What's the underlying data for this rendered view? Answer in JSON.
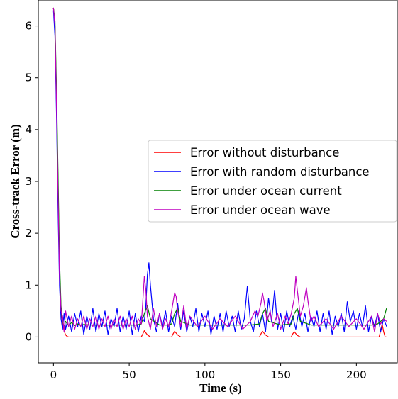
{
  "chart_data": {
    "type": "line",
    "title": "",
    "xlabel": "Time (s)",
    "ylabel": "Cross-track Error (m)",
    "xlim": [
      -10,
      227
    ],
    "ylim": [
      -0.5,
      6.5
    ],
    "xticks": [
      0,
      50,
      100,
      150,
      200
    ],
    "yticks": [
      0,
      1,
      2,
      3,
      4,
      5,
      6
    ],
    "xtick_labels": [
      "0",
      "50",
      "100",
      "150",
      "200"
    ],
    "ytick_labels": [
      "0",
      "1",
      "2",
      "3",
      "4",
      "5",
      "6"
    ],
    "grid": false,
    "legend_position": "center-right",
    "series": [
      {
        "name": "Error without disturbance",
        "color": "#ff0000",
        "x": [
          0,
          1,
          2,
          3,
          4,
          5,
          6,
          7,
          8,
          9,
          10,
          15,
          20,
          25,
          30,
          35,
          40,
          45,
          50,
          55,
          58,
          59,
          60,
          62,
          64,
          70,
          78,
          79,
          80,
          82,
          84,
          90,
          100,
          110,
          120,
          130,
          136,
          137,
          138,
          140,
          142,
          150,
          157,
          158,
          159,
          161,
          163,
          170,
          180,
          190,
          200,
          210,
          215,
          216,
          217,
          218,
          219,
          220
        ],
        "y": [
          6.35,
          6.0,
          4.6,
          3.0,
          1.3,
          0.5,
          0.25,
          0.12,
          0.04,
          0.01,
          0.0,
          0.0,
          0.0,
          0.0,
          0.0,
          0.0,
          0.0,
          0.0,
          0.0,
          0.0,
          0.0,
          0.06,
          0.12,
          0.04,
          0.0,
          0.0,
          0.0,
          0.06,
          0.11,
          0.04,
          0.0,
          0.0,
          0.0,
          0.0,
          0.0,
          0.0,
          0.0,
          0.06,
          0.11,
          0.04,
          0.0,
          0.0,
          0.0,
          0.06,
          0.1,
          0.03,
          0.0,
          0.0,
          0.0,
          0.0,
          0.0,
          0.0,
          0.0,
          0.12,
          0.25,
          0.1,
          0.0,
          0.0
        ]
      },
      {
        "name": "Error with random disturbance",
        "color": "#0000ff",
        "x": [
          0,
          1,
          2,
          3,
          4,
          5,
          6,
          7,
          8,
          10,
          12,
          14,
          16,
          18,
          20,
          22,
          24,
          26,
          28,
          30,
          32,
          34,
          36,
          38,
          40,
          42,
          44,
          46,
          48,
          50,
          52,
          54,
          56,
          58,
          60,
          61,
          62,
          63,
          64,
          66,
          68,
          70,
          72,
          74,
          76,
          78,
          80,
          82,
          84,
          86,
          88,
          90,
          92,
          94,
          96,
          98,
          100,
          102,
          104,
          106,
          108,
          110,
          112,
          114,
          116,
          118,
          120,
          122,
          124,
          126,
          128,
          130,
          132,
          134,
          136,
          138,
          140,
          142,
          144,
          146,
          148,
          150,
          152,
          154,
          156,
          158,
          160,
          162,
          164,
          166,
          168,
          170,
          172,
          174,
          176,
          178,
          180,
          182,
          184,
          186,
          188,
          190,
          192,
          194,
          196,
          198,
          200,
          202,
          204,
          206,
          208,
          210,
          212,
          214,
          216,
          218,
          220
        ],
        "y": [
          6.3,
          5.8,
          4.3,
          2.5,
          1.0,
          0.35,
          0.15,
          0.45,
          0.15,
          0.4,
          0.1,
          0.45,
          0.2,
          0.5,
          0.05,
          0.4,
          0.15,
          0.55,
          0.1,
          0.45,
          0.2,
          0.5,
          0.05,
          0.35,
          0.2,
          0.55,
          0.1,
          0.4,
          0.15,
          0.5,
          0.05,
          0.45,
          0.1,
          0.4,
          0.3,
          0.6,
          1.2,
          1.43,
          1.0,
          0.35,
          0.1,
          0.45,
          0.2,
          0.5,
          0.1,
          0.4,
          0.2,
          0.65,
          0.15,
          0.5,
          0.1,
          0.4,
          0.2,
          0.55,
          0.1,
          0.45,
          0.2,
          0.5,
          0.05,
          0.4,
          0.15,
          0.45,
          0.1,
          0.5,
          0.2,
          0.4,
          0.1,
          0.5,
          0.15,
          0.35,
          0.98,
          0.3,
          0.1,
          0.5,
          0.2,
          0.45,
          0.1,
          0.75,
          0.3,
          0.9,
          0.15,
          0.45,
          0.1,
          0.5,
          0.2,
          0.4,
          0.15,
          0.5,
          0.2,
          0.45,
          0.1,
          0.4,
          0.2,
          0.5,
          0.1,
          0.45,
          0.15,
          0.5,
          0.05,
          0.4,
          0.2,
          0.45,
          0.1,
          0.68,
          0.3,
          0.5,
          0.15,
          0.45,
          0.2,
          0.6,
          0.1,
          0.4,
          0.2,
          0.45,
          0.1,
          0.35,
          0.2
        ]
      },
      {
        "name": "Error under ocean current",
        "color": "#008000",
        "x": [
          0,
          1,
          2,
          3,
          4,
          5,
          6,
          7,
          8,
          10,
          12,
          14,
          16,
          18,
          20,
          25,
          30,
          35,
          40,
          45,
          50,
          55,
          58,
          60,
          62,
          64,
          70,
          75,
          78,
          80,
          82,
          84,
          90,
          100,
          110,
          120,
          130,
          136,
          138,
          140,
          142,
          150,
          157,
          159,
          161,
          163,
          170,
          180,
          190,
          200,
          210,
          214,
          216,
          218,
          220
        ],
        "y": [
          6.35,
          6.1,
          4.8,
          3.2,
          1.5,
          0.6,
          0.3,
          0.2,
          0.3,
          0.22,
          0.28,
          0.22,
          0.25,
          0.22,
          0.24,
          0.23,
          0.23,
          0.23,
          0.23,
          0.23,
          0.23,
          0.23,
          0.25,
          0.45,
          0.6,
          0.35,
          0.23,
          0.23,
          0.25,
          0.45,
          0.55,
          0.3,
          0.23,
          0.23,
          0.23,
          0.23,
          0.23,
          0.25,
          0.45,
          0.55,
          0.3,
          0.23,
          0.25,
          0.45,
          0.55,
          0.3,
          0.23,
          0.23,
          0.23,
          0.23,
          0.23,
          0.25,
          0.3,
          0.35,
          0.56
        ]
      },
      {
        "name": "Error under ocean wave",
        "color": "#bf00bf",
        "x": [
          0,
          1,
          2,
          3,
          4,
          5,
          6,
          7,
          8,
          10,
          12,
          14,
          16,
          18,
          20,
          22,
          24,
          26,
          28,
          30,
          32,
          34,
          36,
          38,
          40,
          42,
          44,
          46,
          48,
          50,
          52,
          54,
          56,
          58,
          59,
          60,
          61,
          62,
          64,
          66,
          68,
          70,
          72,
          74,
          76,
          78,
          80,
          81,
          82,
          84,
          86,
          88,
          90,
          95,
          100,
          105,
          110,
          115,
          120,
          125,
          130,
          133,
          135,
          137,
          138,
          139,
          141,
          143,
          145,
          148,
          150,
          153,
          155,
          157,
          159,
          160,
          161,
          163,
          165,
          167,
          168,
          170,
          172,
          175,
          180,
          185,
          190,
          195,
          200,
          205,
          210,
          212,
          214,
          216,
          218,
          220
        ],
        "y": [
          6.35,
          6.0,
          4.5,
          2.8,
          1.2,
          0.5,
          0.4,
          0.1,
          0.5,
          0.2,
          0.4,
          0.15,
          0.35,
          0.2,
          0.4,
          0.15,
          0.35,
          0.2,
          0.4,
          0.15,
          0.35,
          0.2,
          0.4,
          0.15,
          0.35,
          0.2,
          0.4,
          0.15,
          0.35,
          0.2,
          0.4,
          0.15,
          0.35,
          0.25,
          0.7,
          1.17,
          0.9,
          0.4,
          0.15,
          0.55,
          0.2,
          0.45,
          0.15,
          0.35,
          0.2,
          0.5,
          0.85,
          0.78,
          0.5,
          0.2,
          0.6,
          0.15,
          0.4,
          0.2,
          0.4,
          0.15,
          0.35,
          0.2,
          0.4,
          0.15,
          0.3,
          0.5,
          0.4,
          0.65,
          0.85,
          0.7,
          0.3,
          0.5,
          0.2,
          0.45,
          0.15,
          0.4,
          0.25,
          0.45,
          0.75,
          1.17,
          0.9,
          0.4,
          0.6,
          0.95,
          0.7,
          0.3,
          0.4,
          0.2,
          0.35,
          0.15,
          0.4,
          0.2,
          0.35,
          0.15,
          0.4,
          0.1,
          0.45,
          0.25,
          0.35,
          0.3
        ]
      }
    ]
  }
}
